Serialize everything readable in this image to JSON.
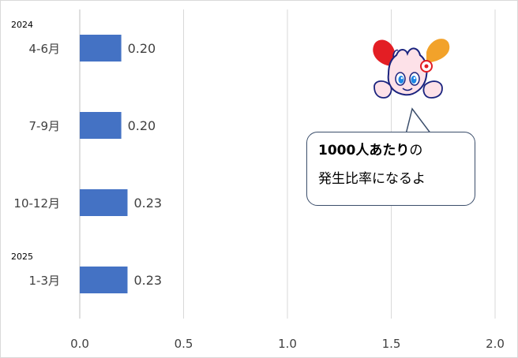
{
  "chart_data": {
    "type": "bar",
    "orientation": "horizontal",
    "categories": [
      "4-6月",
      "7-9月",
      "10-12月",
      "1-3月"
    ],
    "year_labels": [
      "2024",
      "",
      "",
      "2025"
    ],
    "values": [
      0.2,
      0.2,
      0.23,
      0.23
    ],
    "value_labels": [
      "0.20",
      "0.20",
      "0.23",
      "0.23"
    ],
    "xlim": [
      0.0,
      2.0
    ],
    "x_ticks": [
      "0.0",
      "0.5",
      "1.0",
      "1.5",
      "2.0"
    ],
    "x_tick_values": [
      0.0,
      0.5,
      1.0,
      1.5,
      2.0
    ],
    "grid": "vertical",
    "bar_color": "#4472c4",
    "grid_color": "#d9d9d9"
  },
  "callout": {
    "bold_text": "1000人あたり",
    "normal_text": "の",
    "line2": "発生比率になるよ"
  },
  "mascot": {
    "icon": "mascot-character-icon"
  }
}
